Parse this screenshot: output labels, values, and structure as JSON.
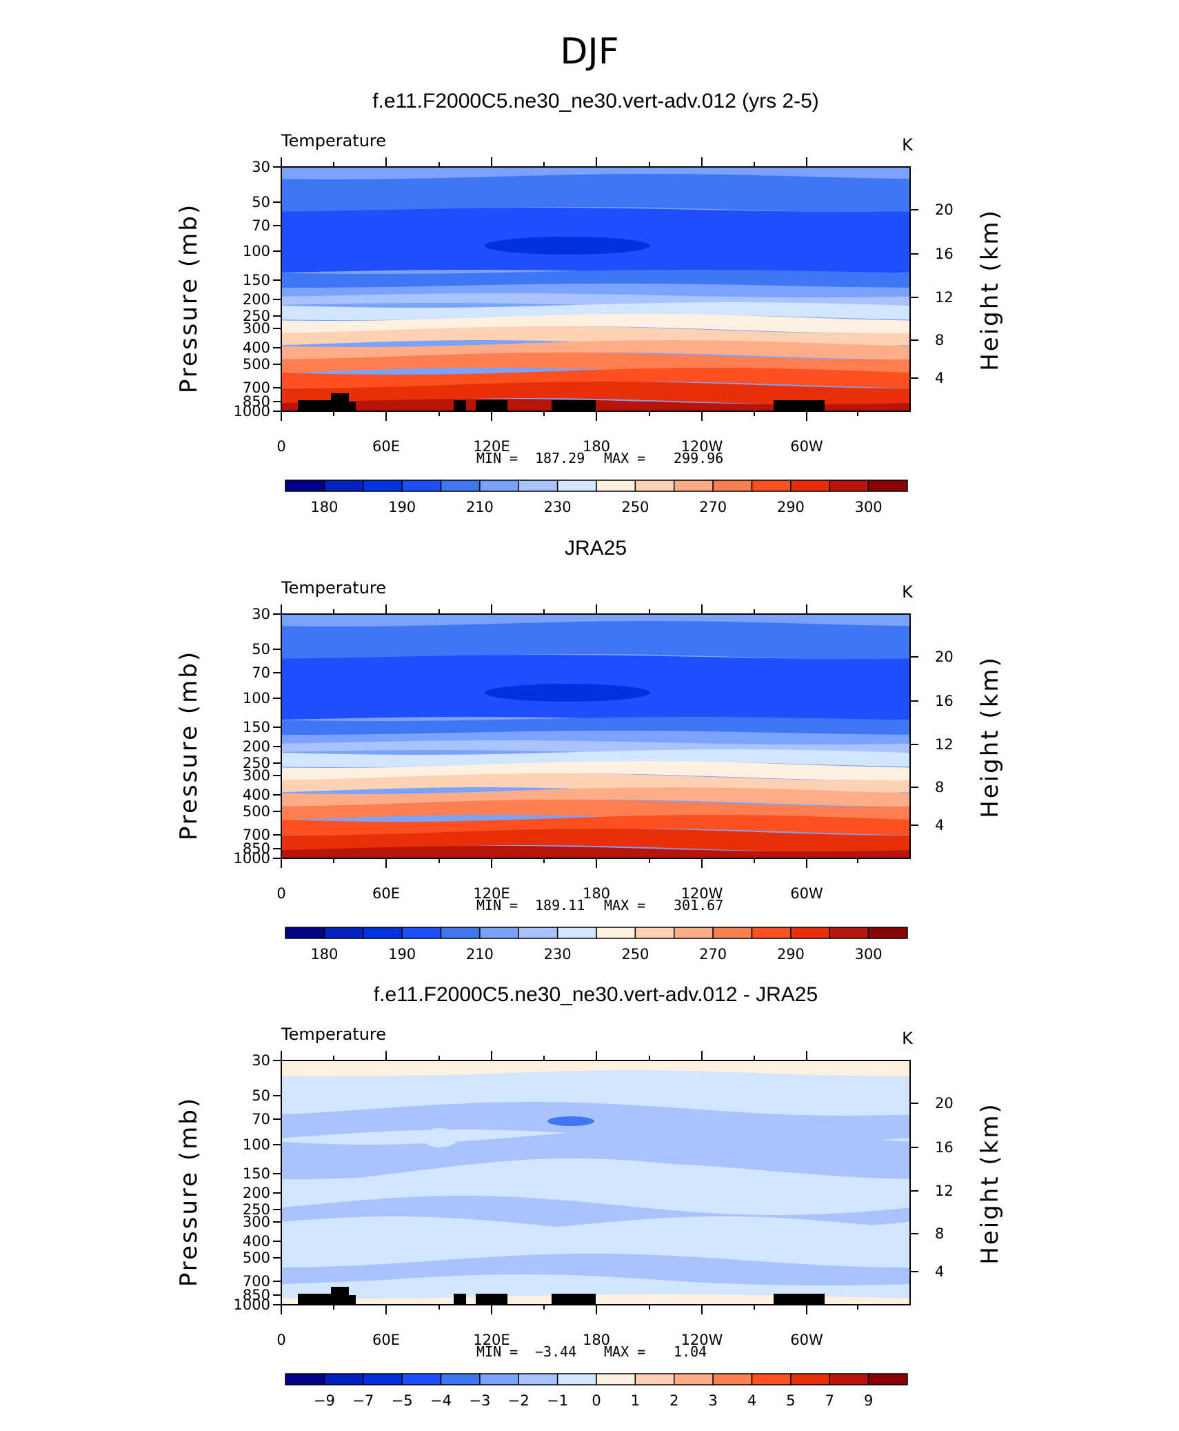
{
  "figure_title": "DJF",
  "colormaps": {
    "abs": [
      "#00008b",
      "#0020c0",
      "#0033dd",
      "#1e50ff",
      "#3f76f5",
      "#7ba2ff",
      "#a9c3ff",
      "#d2e6ff",
      "#fff0e0",
      "#ffd2b4",
      "#ffac88",
      "#ff7e52",
      "#ff5020",
      "#e83008",
      "#b81408",
      "#8b0000"
    ],
    "diff": [
      "#00008b",
      "#0020c0",
      "#0033dd",
      "#1e50ff",
      "#3f76f5",
      "#7ba2ff",
      "#a9c3ff",
      "#d2e6ff",
      "#fff0e0",
      "#ffd2b4",
      "#ffac88",
      "#ff7e52",
      "#ff5020",
      "#e83008",
      "#b81408",
      "#8b0000"
    ]
  },
  "chart_data": [
    {
      "type": "heatmap",
      "title": "f.e11.F2000C5.ne30_ne30.vert-adv.012 (yrs 2-5)",
      "left_label": "Temperature",
      "right_label": "K",
      "ylabel": "Pressure  (mb)",
      "ylabel_right": "Height  (km)",
      "x_ticks": [
        "0",
        "60E",
        "120E",
        "180",
        "120W",
        "60W"
      ],
      "y_ticks": [
        "30",
        "50",
        "70",
        "100",
        "150",
        "200",
        "250",
        "300",
        "400",
        "500",
        "700",
        "850",
        "1000"
      ],
      "height_ticks": [
        "20",
        "16",
        "12",
        "8",
        "4"
      ],
      "min_label": "MIN =",
      "min_value": "187.29",
      "max_label": "MAX =",
      "max_value": "299.96",
      "colorbar_labels": [
        "180",
        "190",
        "210",
        "230",
        "250",
        "270",
        "290",
        "300"
      ],
      "colormap": "abs",
      "topography": true
    },
    {
      "type": "heatmap",
      "title": "JRA25",
      "left_label": "Temperature",
      "right_label": "K",
      "ylabel": "Pressure  (mb)",
      "ylabel_right": "Height  (km)",
      "x_ticks": [
        "0",
        "60E",
        "120E",
        "180",
        "120W",
        "60W"
      ],
      "y_ticks": [
        "30",
        "50",
        "70",
        "100",
        "150",
        "200",
        "250",
        "300",
        "400",
        "500",
        "700",
        "850",
        "1000"
      ],
      "height_ticks": [
        "20",
        "16",
        "12",
        "8",
        "4"
      ],
      "min_label": "MIN =",
      "min_value": "189.11",
      "max_label": "MAX =",
      "max_value": "301.67",
      "colorbar_labels": [
        "180",
        "190",
        "210",
        "230",
        "250",
        "270",
        "290",
        "300"
      ],
      "colormap": "abs",
      "topography": false
    },
    {
      "type": "heatmap",
      "title": "f.e11.F2000C5.ne30_ne30.vert-adv.012 - JRA25",
      "left_label": "Temperature",
      "right_label": "K",
      "ylabel": "Pressure  (mb)",
      "ylabel_right": "Height  (km)",
      "x_ticks": [
        "0",
        "60E",
        "120E",
        "180",
        "120W",
        "60W"
      ],
      "y_ticks": [
        "30",
        "50",
        "70",
        "100",
        "150",
        "200",
        "250",
        "300",
        "400",
        "500",
        "700",
        "850",
        "1000"
      ],
      "height_ticks": [
        "20",
        "16",
        "12",
        "8",
        "4"
      ],
      "min_label": "MIN =",
      "min_value": "−3.44",
      "max_label": "MAX =",
      "max_value": "1.04",
      "colorbar_labels": [
        "−9",
        "−7",
        "−5",
        "−4",
        "−3",
        "−2",
        "−1",
        "0",
        "1",
        "2",
        "3",
        "4",
        "5",
        "7",
        "9"
      ],
      "colormap": "diff",
      "topography": true
    }
  ]
}
